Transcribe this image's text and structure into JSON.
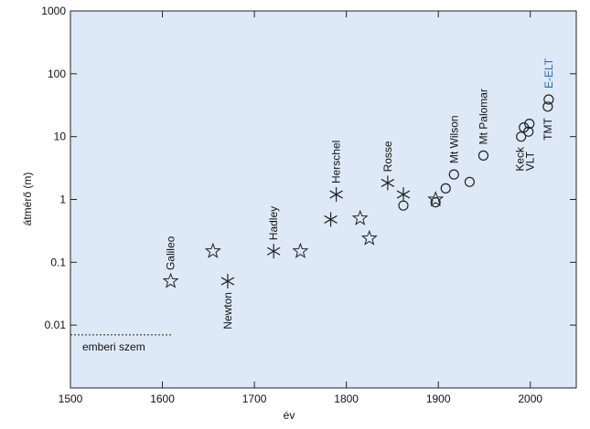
{
  "chart_data": {
    "type": "scatter",
    "xlabel": "év",
    "ylabel": "átmérő (m)",
    "xlim": [
      1500,
      2050
    ],
    "ylim": [
      0.001,
      1000
    ],
    "log_y": true,
    "xticks": [
      1500,
      1600,
      1700,
      1800,
      1900,
      2000
    ],
    "yticks": [
      0.01,
      0.1,
      1,
      10,
      100,
      1000
    ],
    "background": "#dde9f7",
    "series": [
      {
        "marker": "star",
        "color": "#222222",
        "x": [
          1609,
          1655,
          1750,
          1815,
          1825,
          1897
        ],
        "values": [
          0.05,
          0.15,
          0.15,
          0.5,
          0.24,
          1.0
        ],
        "point_labels": [
          "Galileo",
          null,
          null,
          null,
          null,
          null
        ]
      },
      {
        "marker": "asterisk",
        "color": "#222222",
        "x": [
          1671,
          1721,
          1783,
          1789,
          1845,
          1862
        ],
        "values": [
          0.05,
          0.15,
          0.48,
          1.2,
          1.83,
          1.2
        ],
        "point_labels": [
          "Newton",
          "Hadley",
          null,
          "Herschel",
          "Rosse",
          null
        ]
      },
      {
        "marker": "circle",
        "color": "#222222",
        "x": [
          1862,
          1897,
          1908,
          1917,
          1934,
          1949,
          1990,
          1993,
          1998,
          1999,
          2019,
          2020
        ],
        "values": [
          0.8,
          0.9,
          1.5,
          2.5,
          1.9,
          5.0,
          10,
          14,
          12,
          16,
          30,
          39
        ],
        "point_labels": [
          null,
          null,
          null,
          "Mt Wilson",
          null,
          "Mt Palomar",
          "Keck",
          null,
          "VLT",
          null,
          "TMT",
          "E-ELT"
        ],
        "label_colors": [
          null,
          null,
          null,
          null,
          null,
          null,
          null,
          null,
          null,
          null,
          null,
          "#2a6db5"
        ]
      }
    ],
    "reference_line": {
      "label": "emberi szem",
      "value": 0.007,
      "xrange": [
        1500,
        1610
      ]
    }
  }
}
